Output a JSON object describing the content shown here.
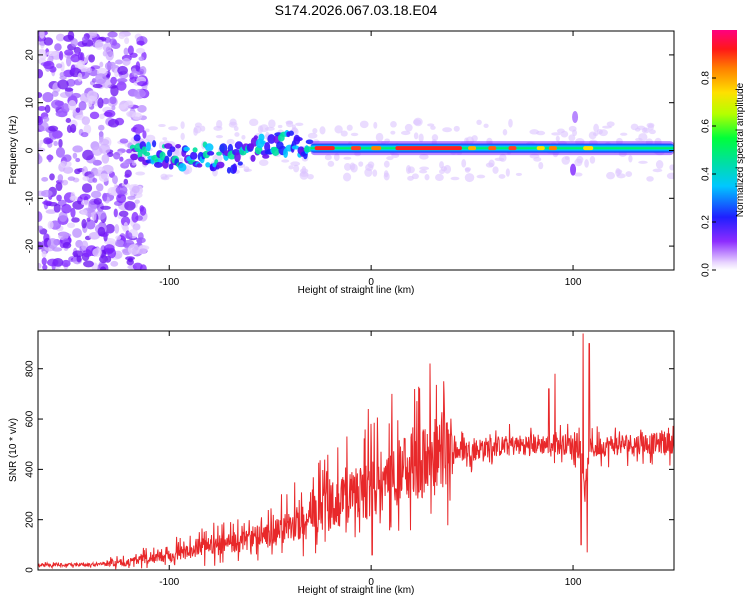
{
  "title": "S174.2026.067.03.18.E04",
  "colors": {
    "snr_line": "#e8282a",
    "background": "#ffffff",
    "axis": "#000000"
  },
  "chart_data": [
    {
      "type": "heatmap",
      "title": "S174.2026.067.03.18.E04",
      "xlabel": "Height of straight line (km)",
      "ylabel": "Frequency (Hz)",
      "xlim": [
        -165,
        150
      ],
      "ylim": [
        -25,
        25
      ],
      "xticks": [
        -100,
        0,
        100
      ],
      "xtick_labels": [
        "-100",
        "0",
        "100"
      ],
      "yticks": [
        -20,
        -10,
        0,
        10,
        20
      ],
      "ytick_labels": [
        "-20",
        "-10",
        "0",
        "10",
        "20"
      ],
      "colorbar": {
        "label": "Normalized spectral amplitude",
        "range": [
          0,
          1
        ],
        "ticks": [
          0.0,
          0.2,
          0.4,
          0.6,
          0.8
        ],
        "tick_labels": [
          "0.0",
          "0.2",
          "0.4",
          "0.6",
          "0.8"
        ]
      },
      "description_data": {
        "noise_region_x": [
          -165,
          -118
        ],
        "signal_start_x": -118,
        "signal_center_freq": 0.5,
        "ridge_freq_by_x": [
          [
            -115,
            0
          ],
          [
            -100,
            -1.5
          ],
          [
            -85,
            -1
          ],
          [
            -70,
            -1.8
          ],
          [
            -55,
            1
          ],
          [
            -40,
            2
          ],
          [
            -30,
            0
          ],
          [
            -10,
            -1
          ],
          [
            0,
            0
          ],
          [
            20,
            1
          ],
          [
            50,
            0.5
          ],
          [
            80,
            0
          ],
          [
            100,
            0.5
          ],
          [
            150,
            0.5
          ]
        ]
      }
    },
    {
      "type": "line",
      "xlabel": "Height of straight line (km)",
      "ylabel": "SNR (10 * v/v)",
      "xlim": [
        -165,
        150
      ],
      "ylim": [
        0,
        950
      ],
      "xticks": [
        -100,
        0,
        100
      ],
      "xtick_labels": [
        "-100",
        "0",
        "100"
      ],
      "yticks": [
        0,
        200,
        400,
        600,
        800
      ],
      "ytick_labels": [
        "0",
        "200",
        "400",
        "600",
        "800"
      ],
      "trend_x": [
        -165,
        -140,
        -120,
        -100,
        -80,
        -60,
        -40,
        -20,
        0,
        20,
        40,
        60,
        80,
        100,
        104,
        106,
        108,
        120,
        150
      ],
      "trend_y": [
        20,
        20,
        30,
        60,
        90,
        120,
        170,
        250,
        330,
        420,
        470,
        490,
        500,
        500,
        480,
        300,
        480,
        500,
        505
      ],
      "spikes": [
        {
          "x": -1.5,
          "y": 640
        },
        {
          "x": 0.5,
          "y": 60
        },
        {
          "x": 88,
          "y": 720
        },
        {
          "x": 91,
          "y": 780
        },
        {
          "x": 104,
          "y": 100
        },
        {
          "x": 105,
          "y": 940
        },
        {
          "x": 107,
          "y": 70
        },
        {
          "x": 108,
          "y": 900
        }
      ]
    }
  ]
}
